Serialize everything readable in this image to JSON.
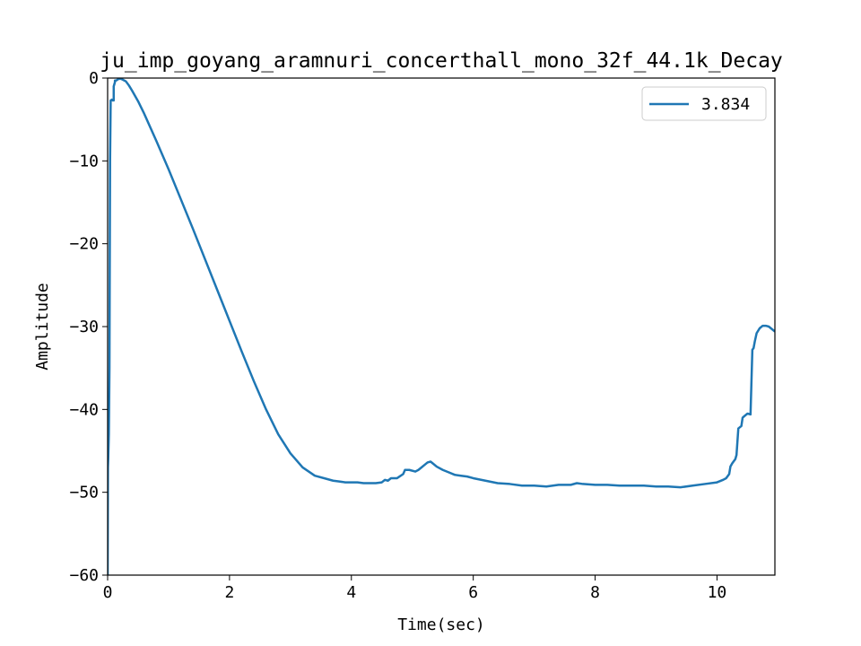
{
  "chart_data": {
    "type": "line",
    "title": "ju_imp_goyang_aramnuri_concerthall_mono_32f_44.1k_Decay",
    "xlabel": "Time(sec)",
    "ylabel": "Amplitude",
    "xlim": [
      0,
      10.95
    ],
    "ylim": [
      -60,
      0
    ],
    "xticks": [
      0,
      2,
      4,
      6,
      8,
      10
    ],
    "yticks": [
      0,
      -10,
      -20,
      -30,
      -40,
      -50,
      -60
    ],
    "xtick_labels": [
      "0",
      "2",
      "4",
      "6",
      "8",
      "10"
    ],
    "ytick_labels": [
      "0",
      "−10",
      "−20",
      "−30",
      "−40",
      "−50",
      "−60"
    ],
    "grid": false,
    "legend_position": "upper right",
    "colors": {
      "series": "#1f77b4",
      "axes": "#000000",
      "background": "#ffffff"
    },
    "series": [
      {
        "name": "3.834",
        "x": [
          0.0,
          0.005,
          0.01,
          0.02,
          0.03,
          0.04,
          0.05,
          0.06,
          0.07,
          0.08,
          0.09,
          0.1,
          0.1,
          0.12,
          0.12,
          0.14,
          0.16,
          0.18,
          0.2,
          0.22,
          0.25,
          0.3,
          0.35,
          0.4,
          0.5,
          0.6,
          0.8,
          1.0,
          1.2,
          1.4,
          1.6,
          1.8,
          2.0,
          2.2,
          2.4,
          2.6,
          2.8,
          3.0,
          3.2,
          3.4,
          3.6,
          3.7,
          3.8,
          3.9,
          4.0,
          4.1,
          4.2,
          4.3,
          4.4,
          4.5,
          4.55,
          4.6,
          4.65,
          4.75,
          4.85,
          4.88,
          4.95,
          5.05,
          5.1,
          5.15,
          5.2,
          5.25,
          5.3,
          5.35,
          5.4,
          5.5,
          5.6,
          5.7,
          5.8,
          5.9,
          6.0,
          6.2,
          6.4,
          6.6,
          6.8,
          7.0,
          7.2,
          7.4,
          7.6,
          7.7,
          7.8,
          8.0,
          8.2,
          8.4,
          8.6,
          8.8,
          9.0,
          9.2,
          9.4,
          9.6,
          9.8,
          10.0,
          10.1,
          10.15,
          10.2,
          10.22,
          10.25,
          10.3,
          10.32,
          10.35,
          10.4,
          10.42,
          10.45,
          10.5,
          10.55,
          10.58,
          10.6,
          10.62,
          10.65,
          10.7,
          10.75,
          10.8,
          10.85,
          10.9,
          10.95
        ],
        "y": [
          -60.0,
          -47.0,
          -46.0,
          -43.0,
          -35.0,
          -10.0,
          -2.7,
          -2.7,
          -2.6,
          -2.7,
          -2.6,
          -2.7,
          -1.0,
          -0.5,
          -0.3,
          -0.3,
          -0.2,
          -0.1,
          -0.1,
          -0.1,
          -0.2,
          -0.4,
          -0.9,
          -1.5,
          -2.8,
          -4.3,
          -7.6,
          -11.0,
          -14.6,
          -18.2,
          -21.9,
          -25.6,
          -29.3,
          -33.0,
          -36.6,
          -40.0,
          -43.0,
          -45.3,
          -47.0,
          -48.0,
          -48.4,
          -48.6,
          -48.7,
          -48.8,
          -48.8,
          -48.8,
          -48.9,
          -48.9,
          -48.9,
          -48.8,
          -48.5,
          -48.6,
          -48.3,
          -48.3,
          -47.8,
          -47.3,
          -47.3,
          -47.5,
          -47.3,
          -47.0,
          -46.7,
          -46.4,
          -46.3,
          -46.6,
          -46.9,
          -47.3,
          -47.6,
          -47.9,
          -48.0,
          -48.1,
          -48.3,
          -48.6,
          -48.9,
          -49.0,
          -49.2,
          -49.2,
          -49.3,
          -49.1,
          -49.1,
          -48.9,
          -49.0,
          -49.1,
          -49.1,
          -49.2,
          -49.2,
          -49.2,
          -49.3,
          -49.3,
          -49.4,
          -49.2,
          -49.0,
          -48.8,
          -48.5,
          -48.3,
          -47.8,
          -46.9,
          -46.5,
          -46.0,
          -45.5,
          -42.3,
          -42.0,
          -41.0,
          -40.8,
          -40.5,
          -40.6,
          -32.8,
          -32.6,
          -31.8,
          -30.8,
          -30.2,
          -29.9,
          -29.9,
          -30.0,
          -30.3,
          -30.6
        ]
      }
    ]
  }
}
